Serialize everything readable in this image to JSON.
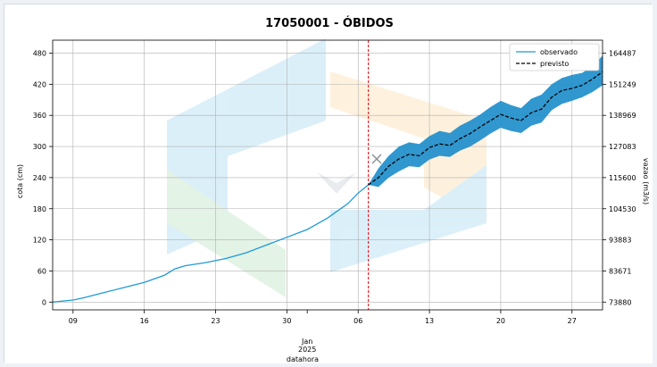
{
  "chart_data": {
    "type": "line",
    "title": "17050001 - ÓBIDOS",
    "xlabel": "datahora",
    "ylabel": "cota (cm)",
    "ylabel_right": "vazao (m3/s)",
    "ylim": [
      -15,
      505
    ],
    "yticks": [
      0,
      60,
      120,
      180,
      240,
      300,
      360,
      420,
      480
    ],
    "yticks_right": [
      {
        "cota": 0,
        "label": "73880"
      },
      {
        "cota": 60,
        "label": "83671"
      },
      {
        "cota": 120,
        "label": "93883"
      },
      {
        "cota": 180,
        "label": "104530"
      },
      {
        "cota": 240,
        "label": "115600"
      },
      {
        "cota": 300,
        "label": "127083"
      },
      {
        "cota": 360,
        "label": "138969"
      },
      {
        "cota": 420,
        "label": "151249"
      },
      {
        "cota": 480,
        "label": "164487"
      }
    ],
    "xlim": [
      "2024-12-07",
      "2025-01-30"
    ],
    "xticks": [
      {
        "date": "2024-12-09",
        "label": "09"
      },
      {
        "date": "2024-12-16",
        "label": "16"
      },
      {
        "date": "2024-12-23",
        "label": "23"
      },
      {
        "date": "2024-12-30",
        "label": "30"
      },
      {
        "date": "2025-01-06",
        "label": "06"
      },
      {
        "date": "2025-01-13",
        "label": "13"
      },
      {
        "date": "2025-01-20",
        "label": "20"
      },
      {
        "date": "2025-01-27",
        "label": "27"
      }
    ],
    "x_month_label": {
      "date": "2025-01-01",
      "lines": [
        "Jan",
        "2025"
      ]
    },
    "forecast_start": "2025-01-07",
    "grid": true,
    "legend_position": "top-right",
    "series": [
      {
        "name": "observado",
        "color": "#1f9ad6",
        "style": "solid",
        "points": [
          [
            "2024-12-07",
            0
          ],
          [
            "2024-12-09",
            4
          ],
          [
            "2024-12-10",
            8
          ],
          [
            "2024-12-12",
            18
          ],
          [
            "2024-12-14",
            28
          ],
          [
            "2024-12-16",
            38
          ],
          [
            "2024-12-18",
            52
          ],
          [
            "2024-12-19",
            64
          ],
          [
            "2024-12-20",
            70
          ],
          [
            "2024-12-22",
            76
          ],
          [
            "2024-12-24",
            84
          ],
          [
            "2024-12-26",
            95
          ],
          [
            "2024-12-28",
            110
          ],
          [
            "2024-12-30",
            125
          ],
          [
            "2025-01-01",
            140
          ],
          [
            "2025-01-03",
            162
          ],
          [
            "2025-01-05",
            190
          ],
          [
            "2025-01-06",
            210
          ],
          [
            "2025-01-07",
            226
          ]
        ]
      },
      {
        "name": "previsto",
        "color": "#000000",
        "style": "dashed",
        "points": [
          [
            "2025-01-07",
            226
          ],
          [
            "2025-01-08",
            240
          ],
          [
            "2025-01-09",
            262
          ],
          [
            "2025-01-10",
            276
          ],
          [
            "2025-01-11",
            285
          ],
          [
            "2025-01-12",
            282
          ],
          [
            "2025-01-13",
            298
          ],
          [
            "2025-01-14",
            305
          ],
          [
            "2025-01-15",
            302
          ],
          [
            "2025-01-16",
            315
          ],
          [
            "2025-01-17",
            325
          ],
          [
            "2025-01-18",
            338
          ],
          [
            "2025-01-19",
            350
          ],
          [
            "2025-01-20",
            362
          ],
          [
            "2025-01-21",
            355
          ],
          [
            "2025-01-22",
            350
          ],
          [
            "2025-01-23",
            365
          ],
          [
            "2025-01-24",
            372
          ],
          [
            "2025-01-25",
            395
          ],
          [
            "2025-01-26",
            408
          ],
          [
            "2025-01-27",
            412
          ],
          [
            "2025-01-28",
            418
          ],
          [
            "2025-01-29",
            430
          ],
          [
            "2025-01-30",
            444
          ]
        ],
        "band_lower": [
          226,
          222,
          240,
          252,
          262,
          260,
          275,
          282,
          280,
          292,
          300,
          312,
          325,
          336,
          330,
          326,
          340,
          346,
          370,
          382,
          388,
          395,
          405,
          418
        ],
        "band_upper": [
          226,
          258,
          282,
          300,
          308,
          305,
          320,
          330,
          326,
          340,
          350,
          362,
          376,
          388,
          380,
          374,
          392,
          400,
          420,
          432,
          438,
          442,
          455,
          475
        ],
        "band_color": "#1f8ecb"
      }
    ]
  }
}
